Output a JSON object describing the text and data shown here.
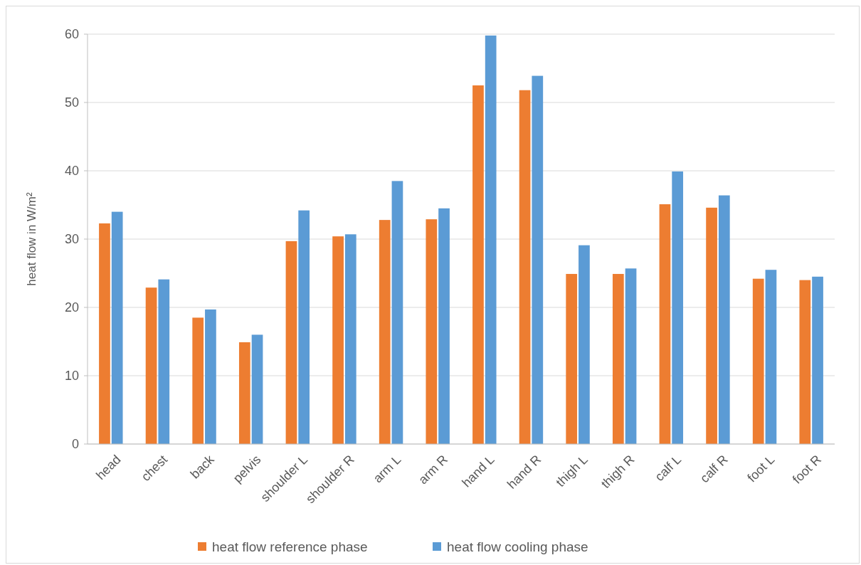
{
  "chart_data": {
    "type": "bar",
    "ylabel": "heat flow in W/m²",
    "categories": [
      "head",
      "chest",
      "back",
      "pelvis",
      "shoulder L",
      "shoulder R",
      "arm L",
      "arm R",
      "hand L",
      "hand R",
      "thigh L",
      "thigh R",
      "calf L",
      "calf R",
      "foot L",
      "foot R"
    ],
    "series": [
      {
        "name": "heat flow reference phase",
        "color": "#ed7d31",
        "values": [
          32.3,
          22.9,
          18.5,
          14.9,
          29.7,
          30.4,
          32.8,
          32.9,
          52.5,
          51.8,
          24.9,
          24.9,
          35.1,
          34.6,
          24.2,
          24.0
        ]
      },
      {
        "name": "heat flow cooling phase",
        "color": "#5b9bd5",
        "values": [
          34.0,
          24.1,
          19.7,
          16.0,
          34.2,
          30.7,
          38.5,
          34.5,
          59.8,
          53.9,
          29.1,
          25.7,
          39.9,
          36.4,
          25.5,
          24.5
        ]
      }
    ],
    "ylim": [
      0,
      60
    ],
    "yticks": [
      0,
      10,
      20,
      30,
      40,
      50,
      60
    ],
    "grid": "y",
    "legend": "bottom"
  }
}
